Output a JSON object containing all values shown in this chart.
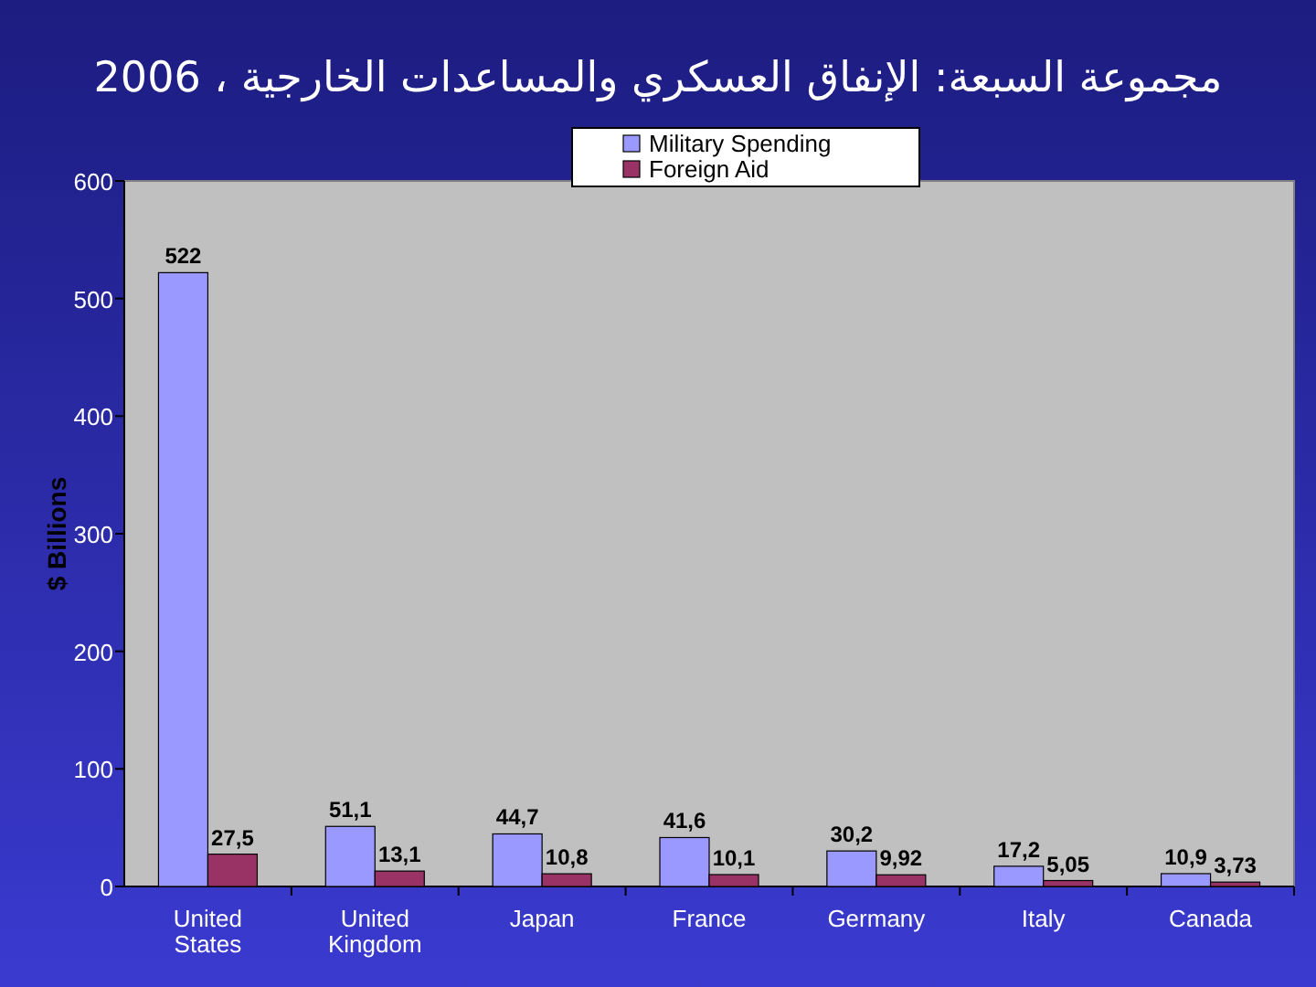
{
  "chart_data": {
    "type": "bar",
    "title": "مجموعة السبعة: الإنفاق العسكري والمساعدات الخارجية ، 2006",
    "ylabel": "$ Billions",
    "categories": [
      "United States",
      "United Kingdom",
      "Japan",
      "France",
      "Germany",
      "Italy",
      "Canada"
    ],
    "series": [
      {
        "name": "Military Spending",
        "color": "#9999ff",
        "values": [
          522,
          51.1,
          44.7,
          41.6,
          30.2,
          17.2,
          10.9
        ],
        "value_labels": [
          "522",
          "51,1",
          "44,7",
          "41,6",
          "30,2",
          "17,2",
          "10,9"
        ]
      },
      {
        "name": "Foreign Aid",
        "color": "#993366",
        "values": [
          27.5,
          13.1,
          10.8,
          10.1,
          9.92,
          5.05,
          3.73
        ],
        "value_labels": [
          "27,5",
          "13,1",
          "10,8",
          "10,1",
          "9,92",
          "5,05",
          "3,73"
        ]
      }
    ],
    "ylim": [
      0,
      600
    ],
    "yticks": [
      0,
      100,
      200,
      300,
      400,
      500,
      600
    ],
    "legend": "top"
  }
}
